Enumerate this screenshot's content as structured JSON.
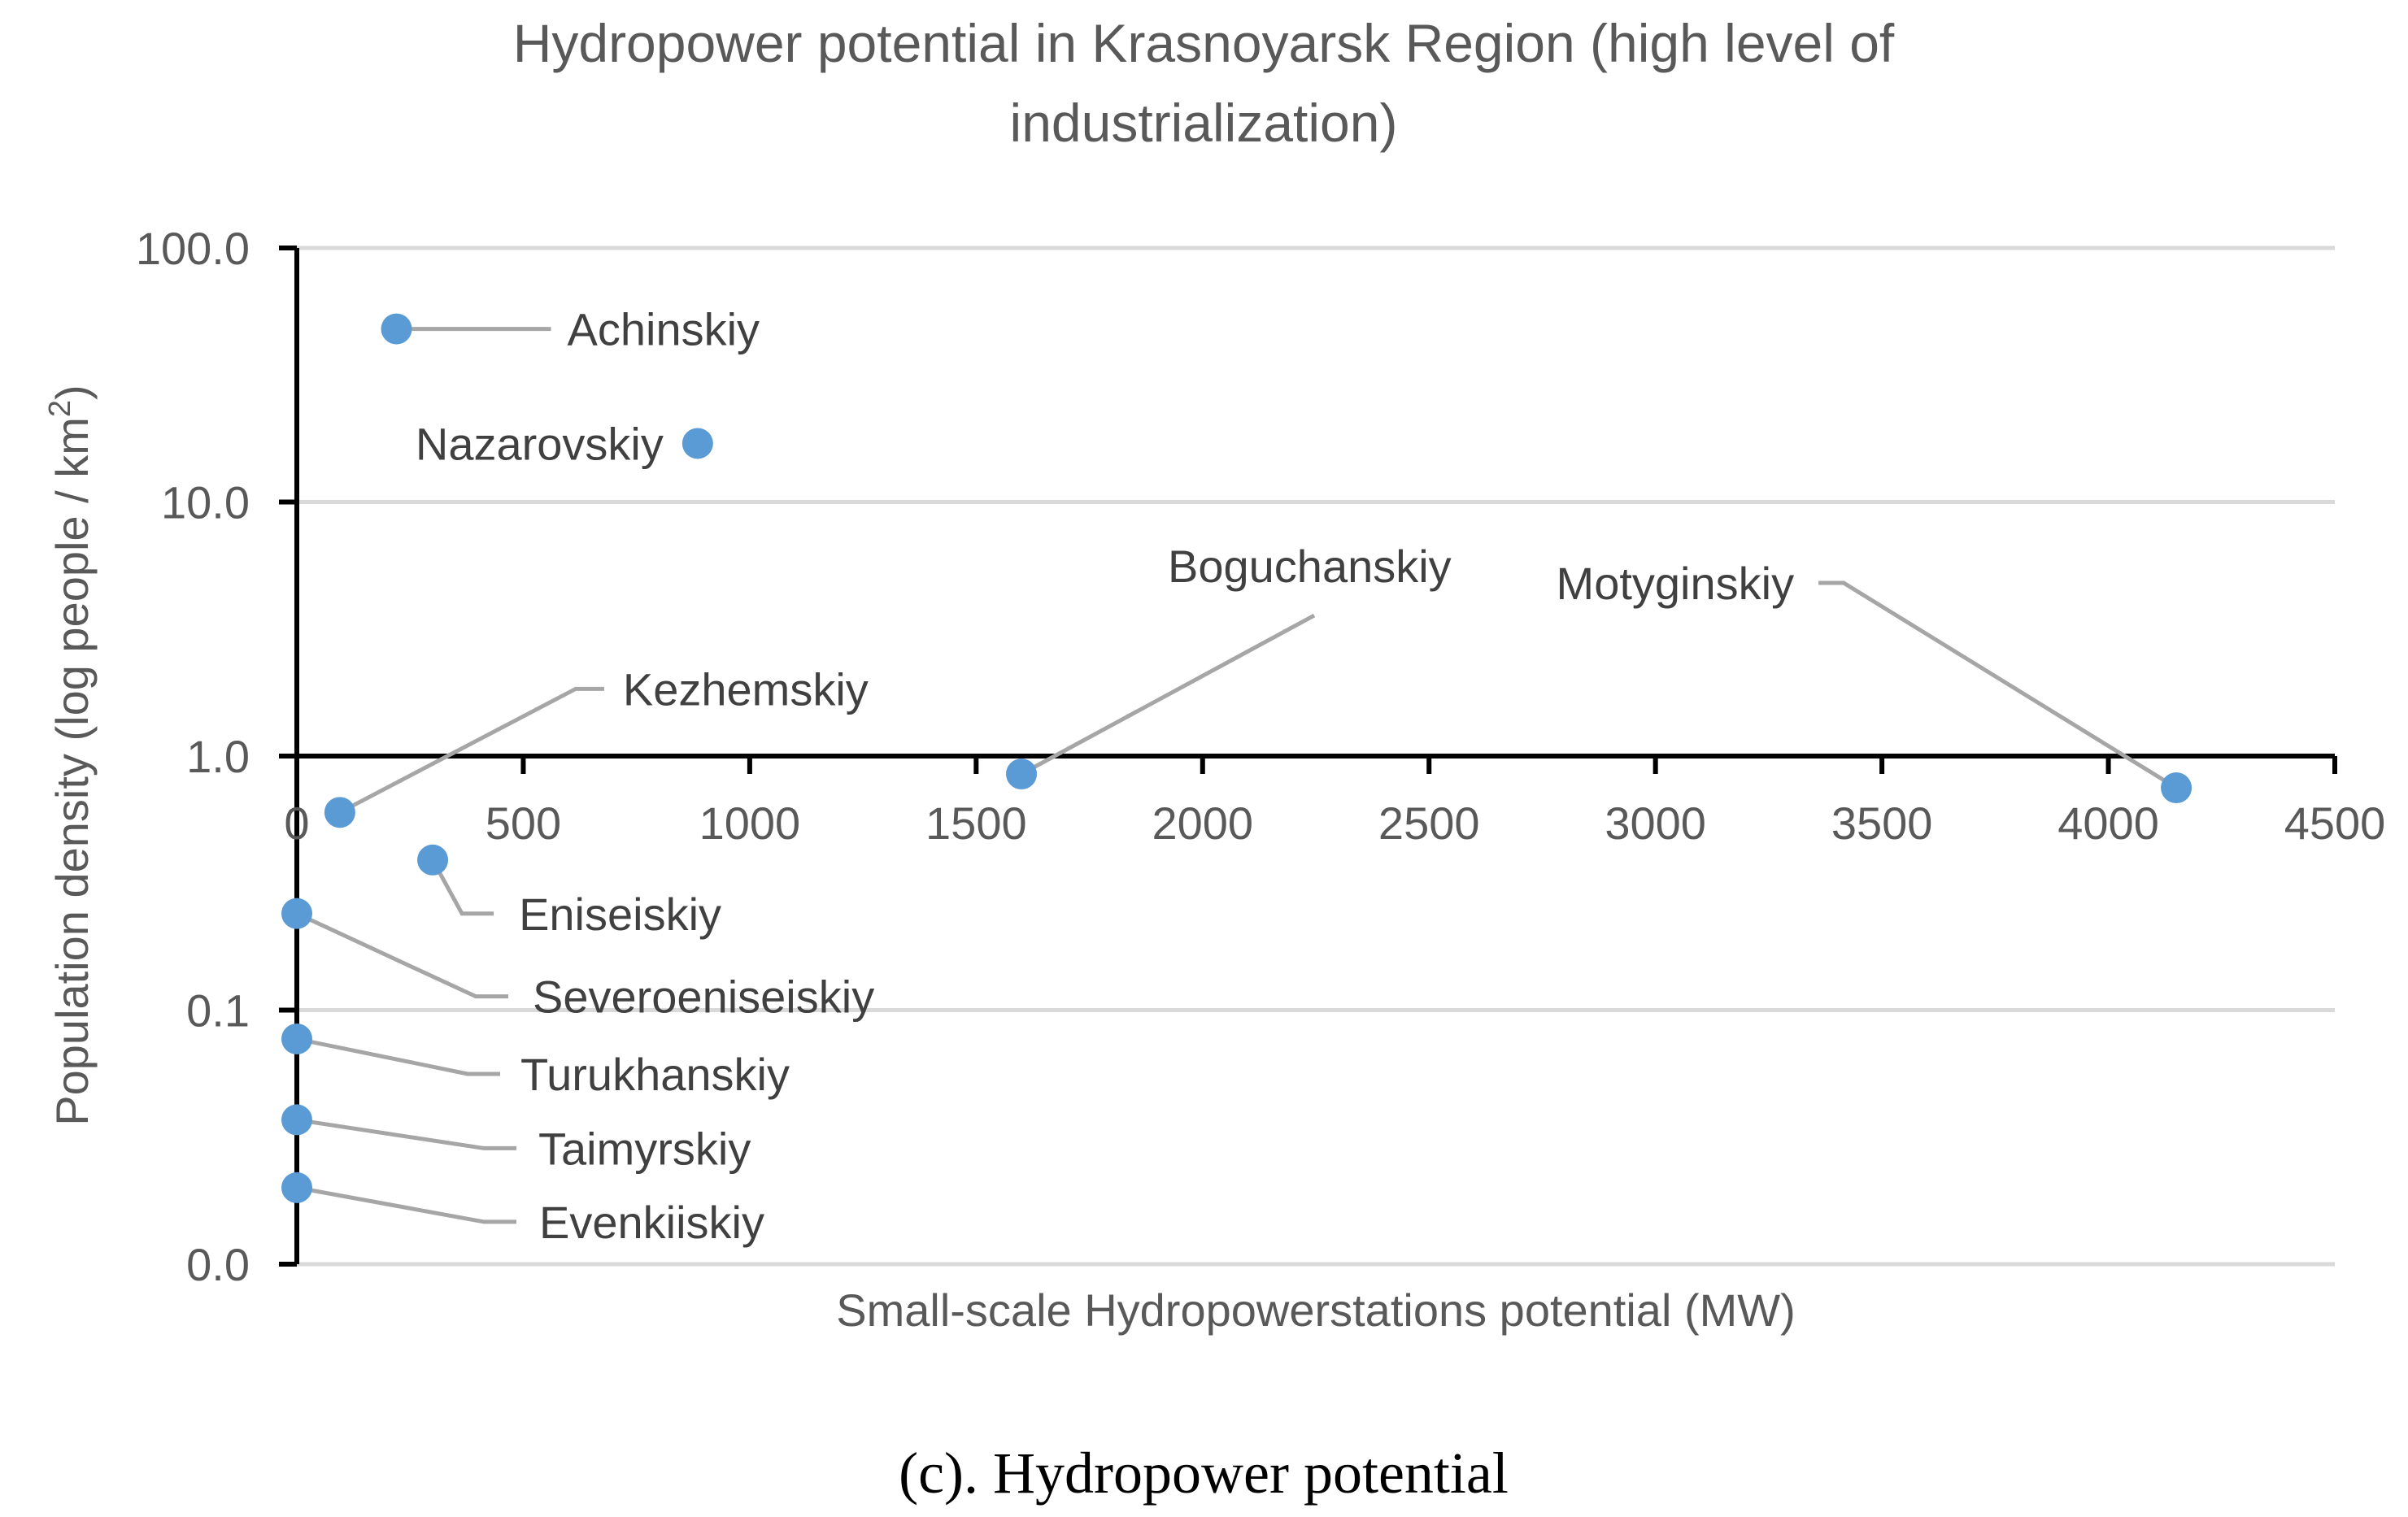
{
  "chart_data": {
    "type": "scatter",
    "title_line1": "Hydropower potential in Krasnoyarsk Region (high level of",
    "title_line2": "industrialization)",
    "xlabel": "Small-scale Hydropowerstations potential  (MW)",
    "ylabel_main": "Population density (log people / km",
    "ylabel_sup": "2",
    "ylabel_end": ")",
    "xlim": [
      0,
      4500
    ],
    "x_ticks": [
      "0",
      "500",
      "1000",
      "1500",
      "2000",
      "2500",
      "3000",
      "3500",
      "4000",
      "4500"
    ],
    "y_scale": "log",
    "y_ticks": [
      "0.0",
      "0.1",
      "1.0",
      "10.0",
      "100.0"
    ],
    "y_tick_values": [
      0.01,
      0.1,
      1,
      10,
      100
    ],
    "x_axis_crosses_at": 1.0,
    "grid": true,
    "legend": "none",
    "marker_color": "#5b9bd5",
    "leader_color": "#a6a6a6",
    "points": [
      {
        "name": "Achinskiy",
        "x": 220,
        "y": 48
      },
      {
        "name": "Nazarovskiy",
        "x": 885,
        "y": 17
      },
      {
        "name": "Kezhemskiy",
        "x": 95,
        "y": 0.6
      },
      {
        "name": "Boguchanskiy",
        "x": 1600,
        "y": 0.85
      },
      {
        "name": "Motyginskiy",
        "x": 4150,
        "y": 0.75
      },
      {
        "name": "Eniseiskiy",
        "x": 300,
        "y": 0.39
      },
      {
        "name": "Severoeniseiskiy",
        "x": 0,
        "y": 0.24
      },
      {
        "name": "Turukhanskiy",
        "x": 0,
        "y": 0.077
      },
      {
        "name": "Taimyrskiy",
        "x": 0,
        "y": 0.037
      },
      {
        "name": "Evenkiiskiy",
        "x": 0,
        "y": 0.02
      }
    ]
  },
  "caption": "(c). Hydropower potential"
}
